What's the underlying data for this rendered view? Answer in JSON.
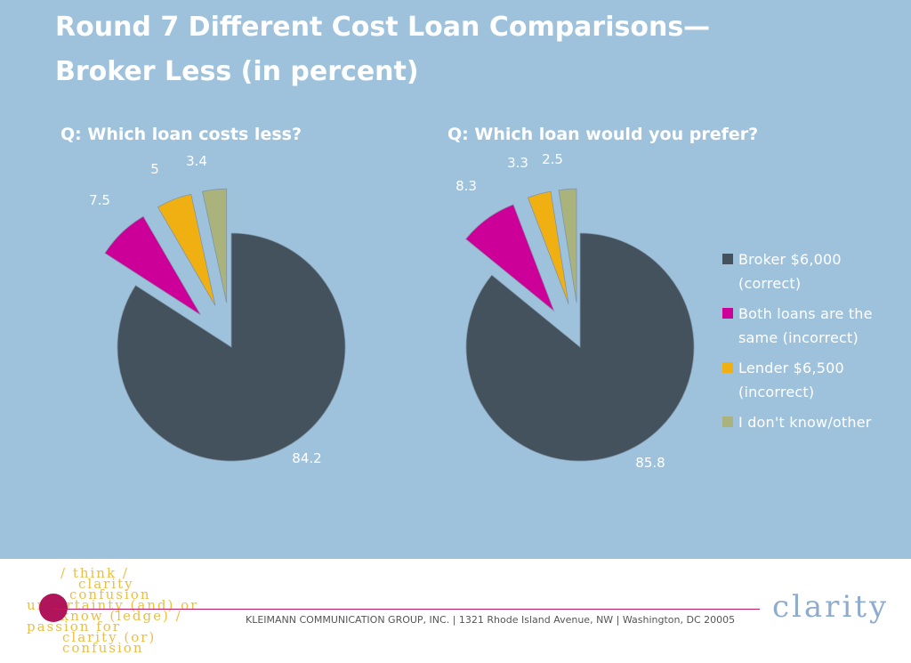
{
  "title": {
    "line1": "Round 7 Different Cost Loan Comparisons—",
    "line2": "Broker Less (in percent)"
  },
  "chart_data": [
    {
      "type": "pie",
      "title": "Q: Which loan costs less?",
      "categories": [
        "Broker $6,000 (correct)",
        "Both loans are the same (incorrect)",
        "Lender $6,500 (incorrect)",
        "I don't know/other"
      ],
      "values": [
        84.2,
        7.5,
        5,
        3.4
      ],
      "labels": [
        "84.2",
        "7.5",
        "5",
        "3.4"
      ],
      "colors": [
        "#44525e",
        "#cc0099",
        "#f0b012",
        "#a9b37b"
      ],
      "legend": "right"
    },
    {
      "type": "pie",
      "title": "Q: Which loan would you prefer?",
      "categories": [
        "Broker $6,000 (correct)",
        "Both loans are the same (incorrect)",
        "Lender $6,500 (incorrect)",
        "I don't know/other"
      ],
      "values": [
        85.8,
        8.3,
        3.3,
        2.5
      ],
      "labels": [
        "85.8",
        "8.3",
        "3.3",
        "2.5"
      ],
      "colors": [
        "#44525e",
        "#cc0099",
        "#f0b012",
        "#a9b37b"
      ],
      "legend": "right"
    }
  ],
  "legend": [
    {
      "line1": "Broker $6,000",
      "line2": "(correct)",
      "color": "#44525e"
    },
    {
      "line1": "Both loans are the",
      "line2": "same (incorrect)",
      "color": "#cc0099"
    },
    {
      "line1": "Lender $6,500",
      "line2": "(incorrect)",
      "color": "#f0b012"
    },
    {
      "line1": "I don't know/other",
      "line2": "",
      "color": "#a9b37b"
    }
  ],
  "footer": {
    "text": "KLEIMANN COMMUNICATION GROUP, INC.  |  1321 Rhode Island Avenue, NW  |  Washington, DC 20005",
    "brand": "clarity",
    "tagline": [
      "/ think /",
      "clarity",
      "confusion",
      "uncertainty (and) or",
      "know (ledge) /",
      "passion for",
      "clarity (or)",
      "confusion"
    ]
  }
}
